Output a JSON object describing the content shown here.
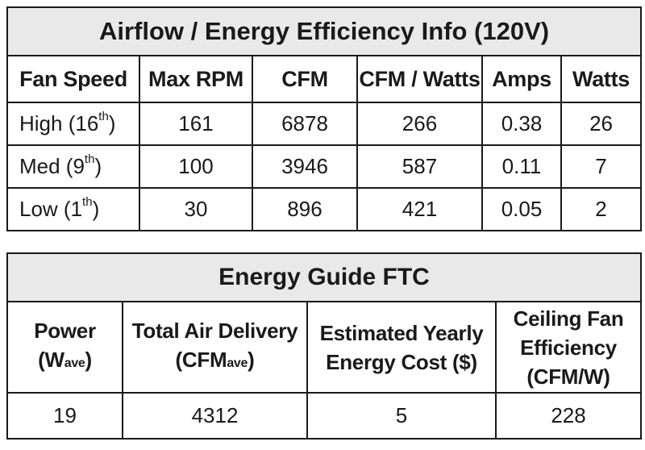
{
  "airflow_table": {
    "title": "Airflow / Energy Efficiency Info (120V)",
    "headers": [
      "Fan Speed",
      "Max RPM",
      "CFM",
      "CFM / Watts",
      "Amps",
      "Watts"
    ],
    "rows": [
      {
        "speed": "High (16",
        "sup": "th",
        "close": ")",
        "rpm": "161",
        "cfm": "6878",
        "cfm_watts": "266",
        "amps": "0.38",
        "watts": "26"
      },
      {
        "speed": "Med (9",
        "sup": "th",
        "close": ")",
        "rpm": "100",
        "cfm": "3946",
        "cfm_watts": "587",
        "amps": "0.11",
        "watts": "7"
      },
      {
        "speed": "Low (1",
        "sup": "th",
        "close": ")",
        "rpm": "30",
        "cfm": "896",
        "cfm_watts": "421",
        "amps": "0.05",
        "watts": "2"
      }
    ]
  },
  "energy_guide": {
    "title": "Energy Guide FTC",
    "power_label": "Power",
    "power_unit_main": "(W",
    "power_unit_sub": "ave",
    "power_unit_close": ")",
    "delivery_label": "Total Air Delivery",
    "delivery_unit_main": "(CFM",
    "delivery_unit_sub": "ave",
    "delivery_unit_close": ")",
    "cost_line1": "Estimated Yearly",
    "cost_line2": "Energy Cost ($)",
    "eff_line1": "Ceiling Fan",
    "eff_line2": "Efficiency",
    "eff_line3": "(CFM/W)",
    "values": {
      "power": "19",
      "delivery": "4312",
      "cost": "5",
      "efficiency": "228"
    }
  }
}
